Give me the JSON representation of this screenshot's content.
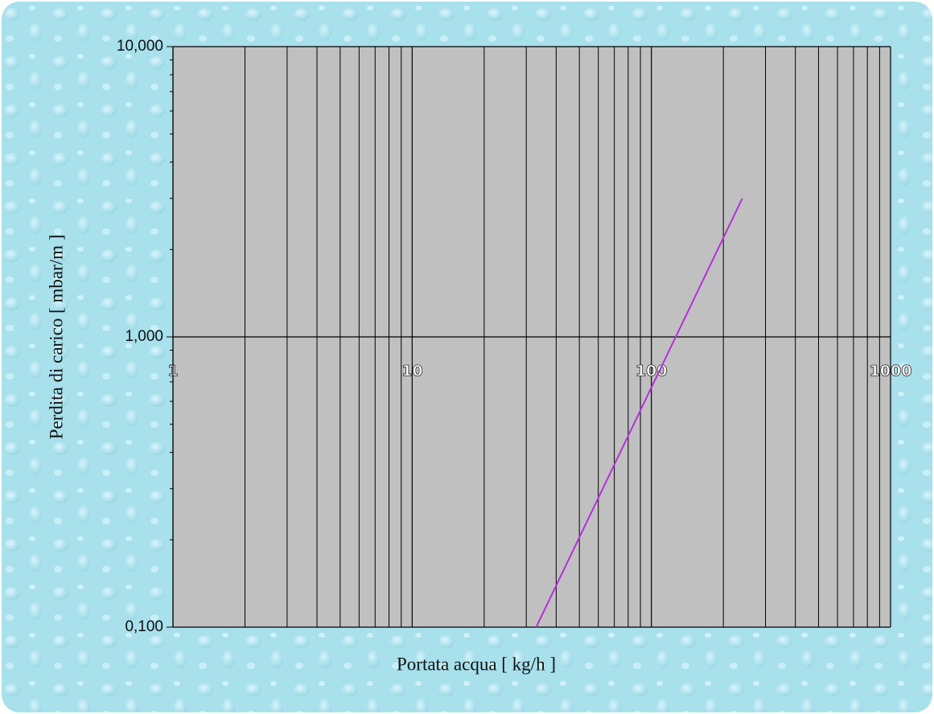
{
  "chart_data": {
    "type": "line",
    "x_label": "Portata acqua [ kg/h ]",
    "y_label": "Perdita di carico [ mbar/m ]",
    "x": [
      33,
      240
    ],
    "values": [
      0.1,
      3.0
    ],
    "color": "#b62fd8",
    "xlim": [
      1,
      1000
    ],
    "ylim": [
      0.1,
      10
    ],
    "xticks": [
      1,
      10,
      100,
      1000
    ],
    "yticks": [
      {
        "value": 0.1,
        "label": "0,100"
      },
      {
        "value": 1,
        "label": "1,000"
      },
      {
        "value": 10,
        "label": "10,000"
      }
    ],
    "log_x": true,
    "log_y": true,
    "grid": true
  }
}
